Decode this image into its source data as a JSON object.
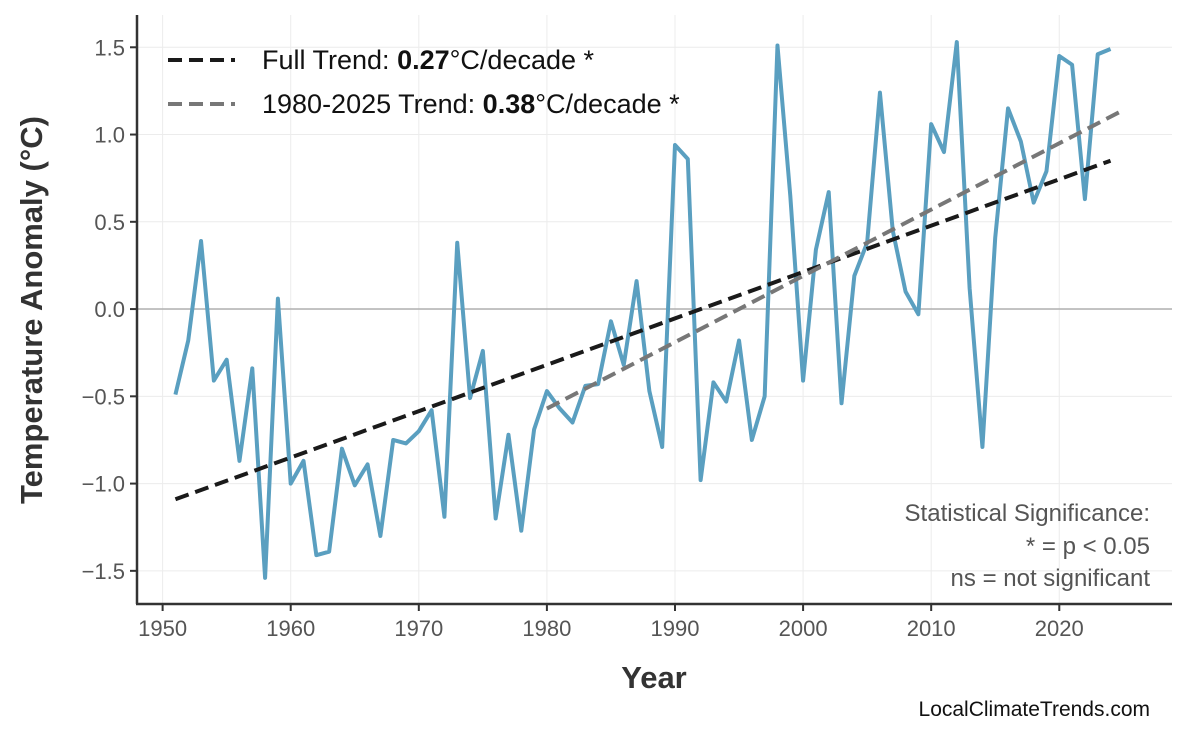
{
  "chart_data": {
    "type": "line",
    "xlabel": "Year",
    "ylabel": "Temperature Anomaly (°C)",
    "xlim": [
      1948,
      2028.8
    ],
    "ylim": [
      -1.69,
      1.685
    ],
    "grid": true,
    "x_ticks": [
      1950,
      1960,
      1970,
      1980,
      1990,
      2000,
      2010,
      2020
    ],
    "y_ticks": [
      -1.5,
      -1.0,
      -0.5,
      0.0,
      0.5,
      1.0,
      1.5
    ],
    "y_tick_labels": [
      "−1.5",
      "−1.0",
      "−0.5",
      "0.0",
      "0.5",
      "1.0",
      "1.5"
    ],
    "series": [
      {
        "color": "#5a9fc0",
        "x": [
          1951,
          1952,
          1953,
          1954,
          1955,
          1956,
          1957,
          1958,
          1959,
          1960,
          1961,
          1962,
          1963,
          1964,
          1965,
          1966,
          1967,
          1968,
          1969,
          1970,
          1971,
          1972,
          1973,
          1974,
          1975,
          1976,
          1977,
          1978,
          1979,
          1980,
          1981,
          1982,
          1983,
          1984,
          1985,
          1986,
          1987,
          1988,
          1989,
          1990,
          1991,
          1992,
          1993,
          1994,
          1995,
          1996,
          1997,
          1998,
          1999,
          2000,
          2001,
          2002,
          2003,
          2004,
          2005,
          2006,
          2007,
          2008,
          2009,
          2010,
          2011,
          2012,
          2013,
          2014,
          2015,
          2016,
          2017,
          2018,
          2019,
          2020,
          2021,
          2022,
          2023,
          2024
        ],
        "y": [
          -0.49,
          -0.18,
          0.39,
          -0.41,
          -0.29,
          -0.87,
          -0.34,
          -1.54,
          0.06,
          -1.0,
          -0.87,
          -1.41,
          -1.39,
          -0.8,
          -1.01,
          -0.89,
          -1.3,
          -0.75,
          -0.77,
          -0.7,
          -0.58,
          -1.19,
          0.38,
          -0.51,
          -0.24,
          -1.2,
          -0.72,
          -1.27,
          -0.69,
          -0.47,
          -0.57,
          -0.65,
          -0.44,
          -0.43,
          -0.07,
          -0.32,
          0.16,
          -0.47,
          -0.79,
          0.94,
          0.86,
          -0.98,
          -0.42,
          -0.53,
          -0.18,
          -0.75,
          -0.5,
          1.51,
          0.65,
          -0.41,
          0.34,
          0.67,
          -0.54,
          0.19,
          0.38,
          1.24,
          0.45,
          0.1,
          -0.03,
          1.06,
          0.9,
          1.53,
          0.12,
          -0.79,
          0.41,
          1.15,
          0.96,
          0.61,
          0.79,
          1.45,
          1.4,
          0.63,
          1.46,
          1.49
        ]
      }
    ],
    "trends": [
      {
        "legend_prefix": "Full Trend: ",
        "value": "0.27",
        "suffix": "°C/decade *",
        "color": "#1a1a1a",
        "x": [
          1951,
          2024
        ],
        "y": [
          -1.09,
          0.85
        ]
      },
      {
        "legend_prefix": "1980-2025 Trend: ",
        "value": "0.38",
        "suffix": "°C/decade *",
        "color": "#777777",
        "x": [
          1980,
          2025
        ],
        "y": [
          -0.57,
          1.14
        ]
      }
    ],
    "legend_position": "top-left",
    "annotation": [
      "Statistical Significance:",
      "* = p < 0.05",
      "ns = not significant"
    ],
    "source": "LocalClimateTrends.com"
  }
}
